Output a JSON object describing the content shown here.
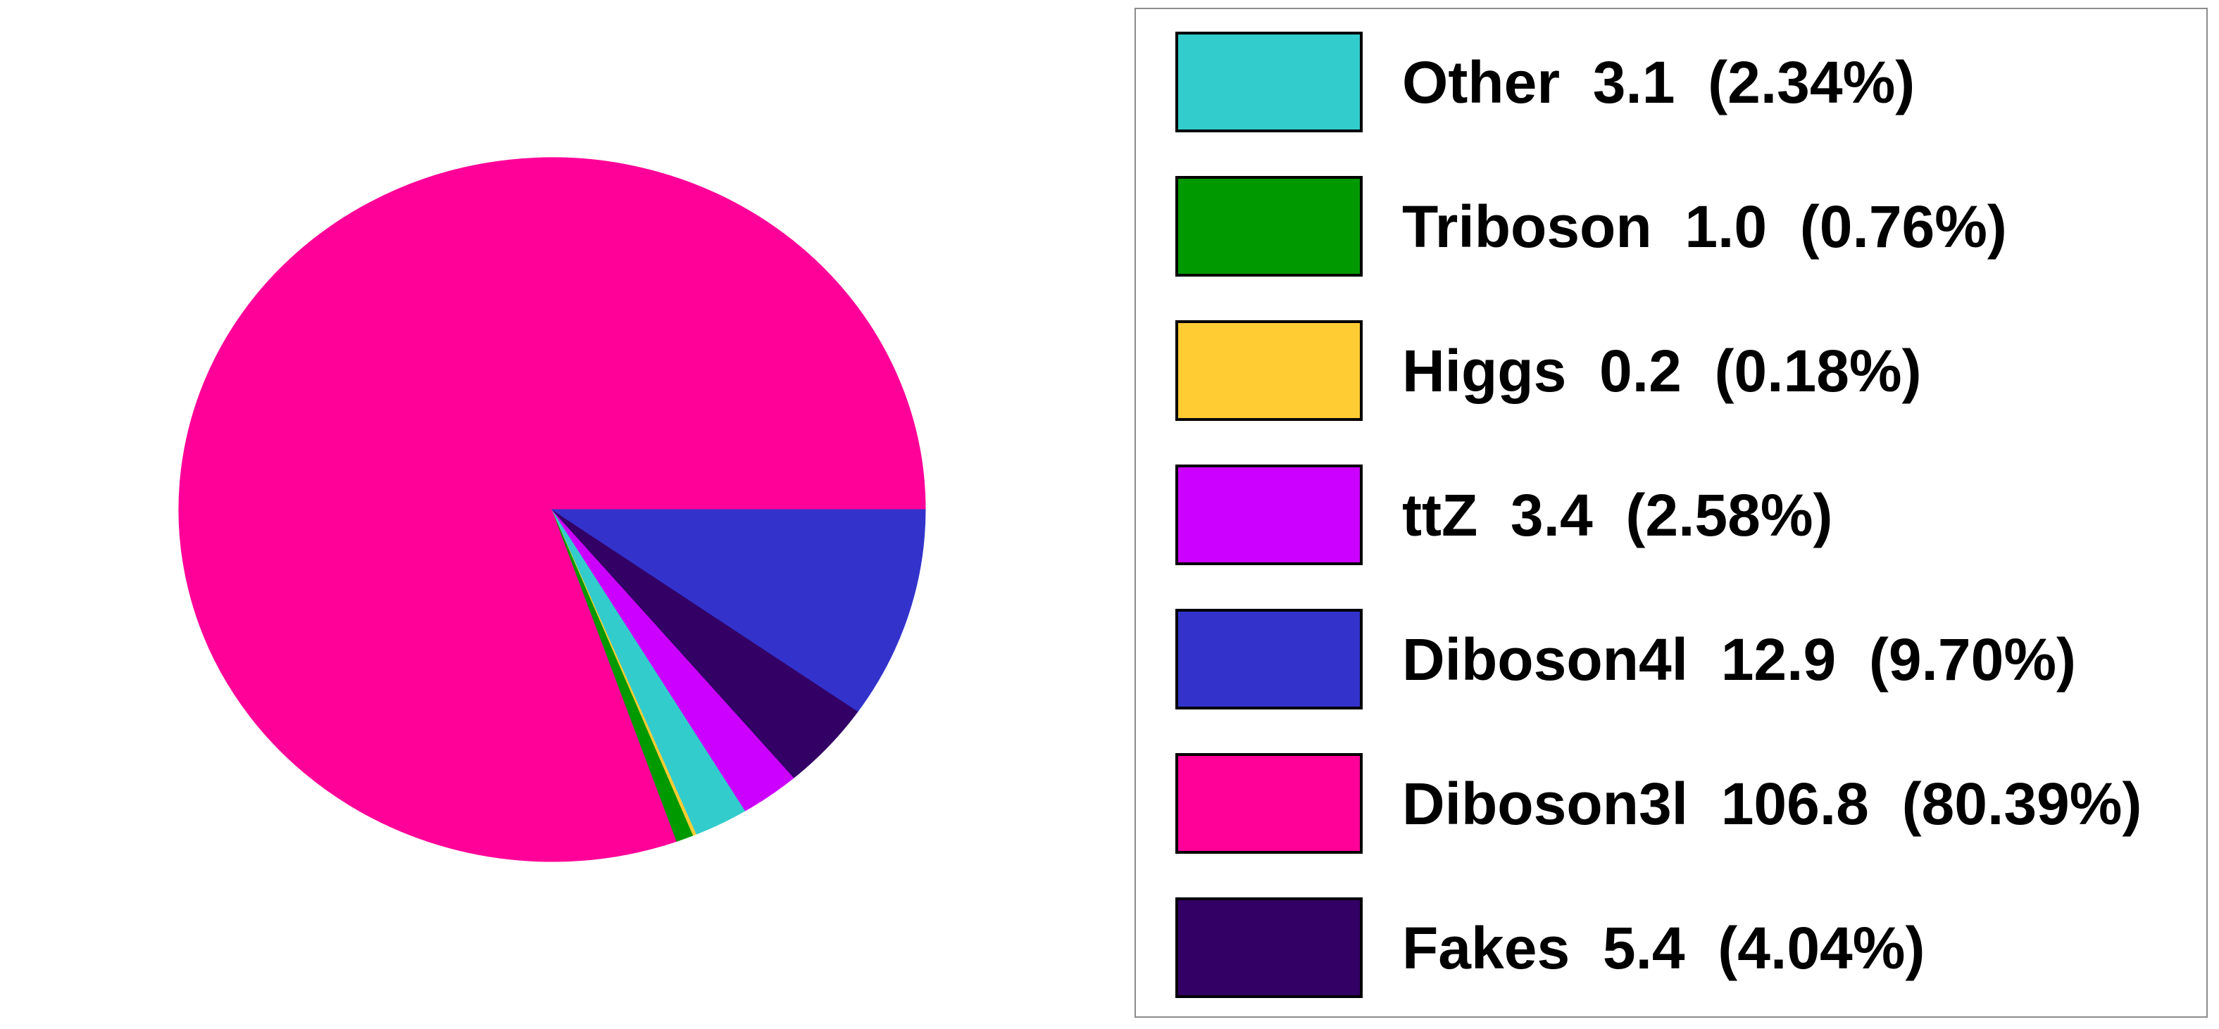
{
  "chart_data": {
    "type": "pie",
    "slices": [
      {
        "name": "Other",
        "value": 3.1,
        "percent": 2.34,
        "color": "#33cccc",
        "label": "Other  3.1  (2.34%)"
      },
      {
        "name": "Triboson",
        "value": 1.0,
        "percent": 0.76,
        "color": "#009900",
        "label": "Triboson  1.0  (0.76%)"
      },
      {
        "name": "Higgs",
        "value": 0.2,
        "percent": 0.18,
        "color": "#ffcc33",
        "label": "Higgs  0.2  (0.18%)"
      },
      {
        "name": "ttZ",
        "value": 3.4,
        "percent": 2.58,
        "color": "#cc00ff",
        "label": "ttZ  3.4  (2.58%)"
      },
      {
        "name": "Diboson4l",
        "value": 12.9,
        "percent": 9.7,
        "color": "#3333cc",
        "label": "Diboson4l  12.9  (9.70%)"
      },
      {
        "name": "Diboson3l",
        "value": 106.8,
        "percent": 80.39,
        "color": "#ff0099",
        "label": "Diboson3l  106.8  (80.39%)"
      },
      {
        "name": "Fakes",
        "value": 5.4,
        "percent": 4.04,
        "color": "#330066",
        "label": "Fakes  5.4  (4.04%)"
      }
    ],
    "pie_order": [
      "Diboson3l",
      "Triboson",
      "Higgs",
      "Other",
      "ttZ",
      "Fakes",
      "Diboson4l"
    ],
    "legend_order": [
      "Other",
      "Triboson",
      "Higgs",
      "ttZ",
      "Diboson4l",
      "Diboson3l",
      "Fakes"
    ],
    "start_angle_deg": 0,
    "direction": "counterclockwise",
    "legend_placement": "right"
  }
}
